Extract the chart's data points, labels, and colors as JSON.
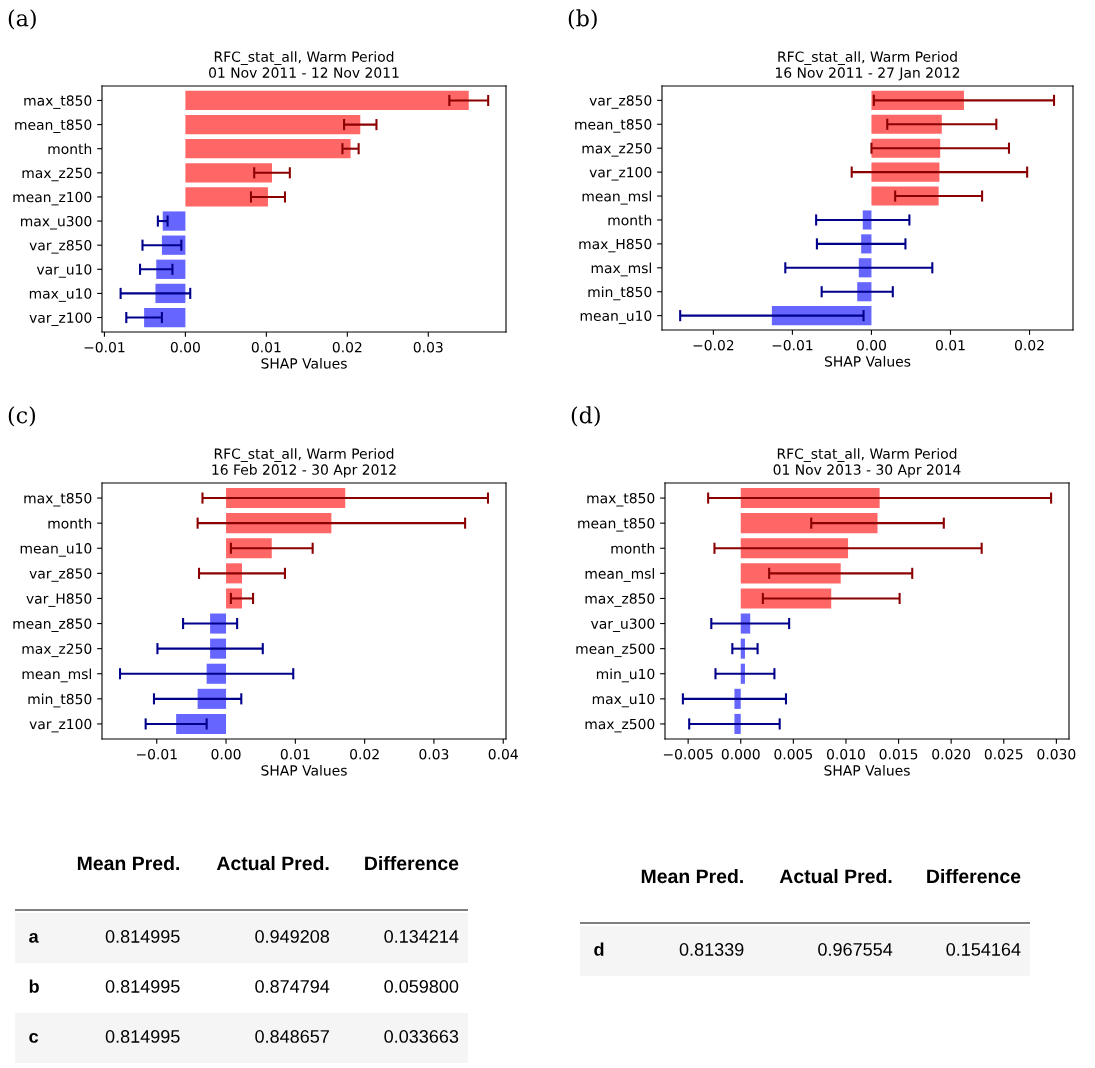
{
  "chart_data": [
    {
      "type": "bar",
      "orientation": "horizontal",
      "title": "RFC_stat_all, Warm Period",
      "subtitle": "01 Nov 2011 - 12 Nov 2011",
      "xlabel": "SHAP Values",
      "annotations": [
        "(a)"
      ],
      "categories": [
        "max_t850",
        "mean_t850",
        "month",
        "max_z250",
        "mean_z100",
        "max_u300",
        "var_z850",
        "var_u10",
        "max_u10",
        "var_z100"
      ],
      "values": [
        0.035,
        0.0216,
        0.0204,
        0.0107,
        0.0102,
        -0.0028,
        -0.0029,
        -0.0036,
        -0.0037,
        -0.0051
      ],
      "errors": [
        0.0024,
        0.002,
        0.001,
        0.0022,
        0.0021,
        0.0006,
        0.0024,
        0.002,
        0.0043,
        0.0022
      ],
      "colors": [
        "#ff6666",
        "#ff6666",
        "#ff6666",
        "#ff6666",
        "#ff6666",
        "#6666ff",
        "#6666ff",
        "#6666ff",
        "#6666ff",
        "#6666ff"
      ],
      "xlim": [
        -0.0103,
        0.0396
      ],
      "xticks": [
        {
          "value": -0.01,
          "label": "−0.01"
        },
        {
          "value": 0,
          "label": "0.00"
        },
        {
          "value": 0.01,
          "label": "0.01"
        },
        {
          "value": 0.02,
          "label": "0.02"
        },
        {
          "value": 0.03,
          "label": "0.03"
        }
      ]
    },
    {
      "type": "bar",
      "orientation": "horizontal",
      "title": "RFC_stat_all, Warm Period",
      "subtitle": "16 Nov 2011 - 27 Jan 2012",
      "xlabel": "SHAP Values",
      "annotations": [
        "(b)"
      ],
      "categories": [
        "var_z850",
        "mean_t850",
        "max_z250",
        "var_z100",
        "mean_msl",
        "month",
        "max_H850",
        "max_msl",
        "min_t850",
        "mean_u10"
      ],
      "values": [
        0.0117,
        0.0089,
        0.0087,
        0.0086,
        0.0085,
        -0.0011,
        -0.0013,
        -0.0016,
        -0.0018,
        -0.0126
      ],
      "errors": [
        0.0114,
        0.0069,
        0.0087,
        0.0111,
        0.0055,
        0.0059,
        0.0056,
        0.0093,
        0.0045,
        0.0116
      ],
      "colors": [
        "#ff6666",
        "#ff6666",
        "#ff6666",
        "#ff6666",
        "#ff6666",
        "#6666ff",
        "#6666ff",
        "#6666ff",
        "#6666ff",
        "#6666ff"
      ],
      "xlim": [
        -0.0265,
        0.0255
      ],
      "xticks": [
        {
          "value": -0.02,
          "label": "−0.02"
        },
        {
          "value": -0.01,
          "label": "−0.01"
        },
        {
          "value": 0,
          "label": "0.00"
        },
        {
          "value": 0.01,
          "label": "0.01"
        },
        {
          "value": 0.02,
          "label": "0.02"
        }
      ]
    },
    {
      "type": "bar",
      "orientation": "horizontal",
      "title": "RFC_stat_all, Warm Period",
      "subtitle": "16 Feb 2012 - 30 Apr 2012",
      "xlabel": "SHAP Values",
      "annotations": [
        "(c)"
      ],
      "categories": [
        "max_t850",
        "month",
        "mean_u10",
        "var_z850",
        "var_H850",
        "mean_z850",
        "max_z250",
        "mean_msl",
        "min_t850",
        "var_z100"
      ],
      "values": [
        0.0172,
        0.0152,
        0.0066,
        0.0023,
        0.0023,
        -0.0023,
        -0.0023,
        -0.0028,
        -0.0041,
        -0.0072
      ],
      "errors": [
        0.0206,
        0.0193,
        0.0059,
        0.0062,
        0.0016,
        0.0039,
        0.0076,
        0.0125,
        0.0063,
        0.0044
      ],
      "colors": [
        "#ff6666",
        "#ff6666",
        "#ff6666",
        "#ff6666",
        "#ff6666",
        "#6666ff",
        "#6666ff",
        "#6666ff",
        "#6666ff",
        "#6666ff"
      ],
      "xlim": [
        -0.0179,
        0.0404
      ],
      "xticks": [
        {
          "value": -0.01,
          "label": "−0.01"
        },
        {
          "value": 0,
          "label": "0.00"
        },
        {
          "value": 0.01,
          "label": "0.01"
        },
        {
          "value": 0.02,
          "label": "0.02"
        },
        {
          "value": 0.03,
          "label": "0.03"
        },
        {
          "value": 0.04,
          "label": "0.04"
        }
      ]
    },
    {
      "type": "bar",
      "orientation": "horizontal",
      "title": "RFC_stat_all, Warm Period",
      "subtitle": "01 Nov 2013 - 30 Apr 2014",
      "xlabel": "SHAP Values",
      "annotations": [
        "(d)"
      ],
      "categories": [
        "max_t850",
        "mean_t850",
        "month",
        "mean_msl",
        "max_z850",
        "var_u300",
        "mean_z500",
        "min_u10",
        "max_u10",
        "max_z500"
      ],
      "values": [
        0.0132,
        0.013,
        0.0102,
        0.0095,
        0.0086,
        0.0009,
        0.0004,
        0.0004,
        -0.0006,
        -0.0006
      ],
      "errors": [
        0.0163,
        0.0063,
        0.0127,
        0.0068,
        0.0065,
        0.0037,
        0.0012,
        0.0028,
        0.0049,
        0.0043
      ],
      "colors": [
        "#ff6666",
        "#ff6666",
        "#ff6666",
        "#ff6666",
        "#ff6666",
        "#6666ff",
        "#6666ff",
        "#6666ff",
        "#6666ff",
        "#6666ff"
      ],
      "xlim": [
        -0.0072,
        0.0312
      ],
      "xticks": [
        {
          "value": -0.005,
          "label": "−0.005"
        },
        {
          "value": 0,
          "label": "0.000"
        },
        {
          "value": 0.005,
          "label": "0.005"
        },
        {
          "value": 0.01,
          "label": "0.010"
        },
        {
          "value": 0.015,
          "label": "0.015"
        },
        {
          "value": 0.02,
          "label": "0.020"
        },
        {
          "value": 0.025,
          "label": "0.025"
        },
        {
          "value": 0.03,
          "label": "0.030"
        }
      ]
    },
    {
      "type": "other",
      "categories": [
        "Mean Pred.",
        "Actual Pred.",
        "Difference"
      ],
      "y_categories": [
        "a",
        "b",
        "c"
      ],
      "cell_labels": [
        [
          "0.814995",
          "0.949208",
          "0.134214"
        ],
        [
          "0.814995",
          "0.874794",
          "0.059800"
        ],
        [
          "0.814995",
          "0.848657",
          "0.033663"
        ]
      ]
    },
    {
      "type": "other",
      "categories": [
        "Mean Pred.",
        "Actual Pred.",
        "Difference"
      ],
      "y_categories": [
        "d"
      ],
      "cell_labels": [
        [
          "0.81339",
          "0.967554",
          "0.154164"
        ]
      ]
    }
  ]
}
